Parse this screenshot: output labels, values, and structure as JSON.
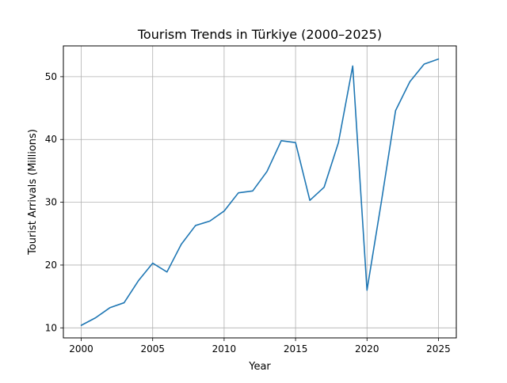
{
  "chart_data": {
    "type": "line",
    "title": "Tourism Trends in Türkiye (2000–2025)",
    "xlabel": "Year",
    "ylabel": "Tourist Arrivals (Millions)",
    "xlim": [
      1998.75,
      2026.25
    ],
    "ylim": [
      8.4,
      54.9
    ],
    "xticks": [
      2000,
      2005,
      2010,
      2015,
      2020,
      2025
    ],
    "yticks": [
      10,
      20,
      30,
      40,
      50
    ],
    "grid": true,
    "colors": {
      "line": "#1f77b4",
      "grid": "#b0b0b0",
      "axes": "#000000"
    },
    "series": [
      {
        "x": [
          2000,
          2001,
          2002,
          2003,
          2004,
          2005,
          2006,
          2007,
          2008,
          2009,
          2010,
          2011,
          2012,
          2013,
          2014,
          2015,
          2016,
          2017,
          2018,
          2019,
          2020,
          2021,
          2022,
          2023,
          2024,
          2025
        ],
        "values": [
          10.4,
          11.6,
          13.2,
          14.0,
          17.5,
          20.3,
          18.9,
          23.3,
          26.3,
          27.0,
          28.6,
          31.5,
          31.8,
          34.9,
          39.8,
          39.5,
          30.3,
          32.4,
          39.5,
          51.7,
          16.0,
          30.0,
          44.6,
          49.2,
          52.0,
          52.8
        ]
      }
    ]
  }
}
